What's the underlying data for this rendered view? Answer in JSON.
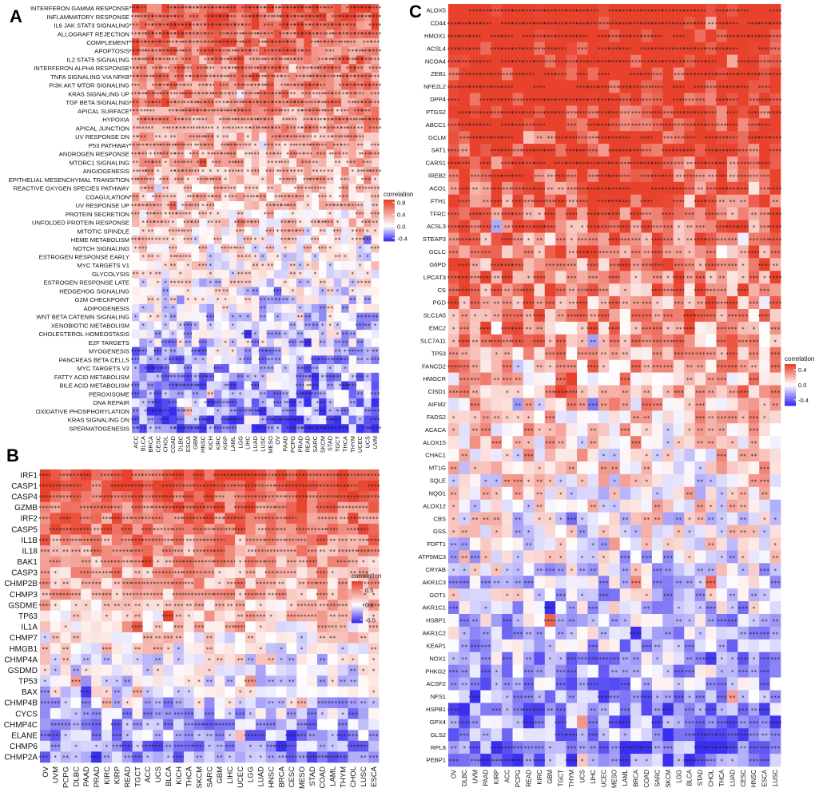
{
  "colors": {
    "low": "#3a2ef0",
    "mid": "#ffffff",
    "high": "#e8412c"
  },
  "chart_data": [
    {
      "id": "A",
      "type": "heatmap",
      "panel_label": "A",
      "legend_title": "correlation",
      "legend_ticks": [
        "0.8",
        "0.4",
        "0.0",
        "-0.4"
      ],
      "vmin": -0.5,
      "vmax": 0.9,
      "rows": [
        "INTERFERON GAMMA RESPONSE",
        "INFLAMMATORY RESPONSE",
        "IL6 JAK STAT3 SIGNALING",
        "ALLOGRAFT REJECTION",
        "COMPLEMENT",
        "APOPTOSIS",
        "IL2 STAT5 SIGNALING",
        "INTERFERON ALPHA RESPONSE",
        "TNFA SIGNALING VIA NFKB",
        "PI3K AKT MTOR SIGNALING",
        "KRAS SIGNALING UP",
        "TGF BETA SIGNALING",
        "APICAL SURFACE",
        "HYPOXIA",
        "APICAL JUNCTION",
        "UV RESPONSE DN",
        "P53 PATHWAY",
        "ANDROGEN RESPONSE",
        "MTORC1 SIGNALING",
        "ANGIOGENESIS",
        "EPITHELIAL MESENCHYMAL TRANSITION",
        "REACTIVE OXYGEN SPECIES PATHWAY",
        "COAGULATION",
        "UV RESPONSE UP",
        "PROTEIN SECRETION",
        "UNFOLDED PROTEIN RESPONSE",
        "MITOTIC SPINDLE",
        "HEME METABOLISM",
        "NOTCH SIGNALING",
        "ESTROGEN RESPONSE EARLY",
        "MYC TARGETS V1",
        "GLYCOLYSIS",
        "ESTROGEN RESPONSE LATE",
        "HEDGEHOG SIGNALING",
        "G2M CHECKPOINT",
        "ADIPOGENESIS",
        "WNT BETA CATENIN SIGNALING",
        "XENOBIOTIC METABOLISM",
        "CHOLESTEROL HOMEOSTASIS",
        "E2F TARGETS",
        "MYOGENESIS",
        "PANCREAS BETA CELLS",
        "MYC TARGETS V2",
        "FATTY ACID METABOLISM",
        "BILE ACID METABOLISM",
        "PEROXISOME",
        "DNA REPAIR",
        "OXIDATIVE PHOSPHORYLATION",
        "KRAS SIGNALING DN",
        "SPERMATOGENESIS"
      ],
      "cols": [
        "ACC",
        "BLCA",
        "BRCA",
        "CESC",
        "CHOL",
        "COAD",
        "DLBC",
        "ESCA",
        "GBM",
        "HNSC",
        "KICH",
        "KIRC",
        "KIRP",
        "LAML",
        "LGG",
        "LIHC",
        "LUAD",
        "LUSC",
        "MESO",
        "OV",
        "PAAD",
        "PCPG",
        "PRAD",
        "READ",
        "SARC",
        "SKCM",
        "STAD",
        "TGCT",
        "THCA",
        "THYM",
        "UCEC",
        "UCS",
        "UVM"
      ]
    },
    {
      "id": "B",
      "type": "heatmap",
      "panel_label": "B",
      "legend_title": "correlation",
      "legend_ticks": [
        "0.5",
        "0.0",
        "-0.5"
      ],
      "vmin": -0.6,
      "vmax": 0.8,
      "rows": [
        "IRF1",
        "CASP1",
        "CASP4",
        "GZMB",
        "IRF2",
        "CASP5",
        "IL1B",
        "IL18",
        "BAK1",
        "CASP3",
        "CHMP2B",
        "CHMP3",
        "GSDME",
        "TP63",
        "IL1A",
        "CHMP7",
        "HMGB1",
        "CHMP4A",
        "GSDMD",
        "TP53",
        "BAX",
        "CHMP4B",
        "CYCS",
        "CHMP4C",
        "ELANE",
        "CHMP6",
        "CHMP2A"
      ],
      "cols": [
        "OV",
        "UVM",
        "PCPG",
        "DLBC",
        "PAAD",
        "PRAD",
        "KIRC",
        "KIRP",
        "READ",
        "TGCT",
        "ACC",
        "UCS",
        "BLCA",
        "KICH",
        "THCA",
        "SKCM",
        "SARC",
        "GBM",
        "LIHC",
        "UCEC",
        "LGG",
        "LUAD",
        "HNSC",
        "BRCA",
        "CESC",
        "MESO",
        "STAD",
        "COAD",
        "LAML",
        "THYM",
        "CHOL",
        "LUSC",
        "ESCA"
      ]
    },
    {
      "id": "C",
      "type": "heatmap",
      "panel_label": "C",
      "legend_title": "correlation",
      "legend_ticks": [
        "0.4",
        "0.0",
        "-0.4"
      ],
      "vmin": -0.55,
      "vmax": 0.55,
      "rows": [
        "ALOX5",
        "CD44",
        "HMOX1",
        "ACSL4",
        "NCOA4",
        "ZEB1",
        "NFE2L2",
        "DPP4",
        "PTGS2",
        "ABCC1",
        "GCLM",
        "SAT1",
        "CARS1",
        "IREB2",
        "ACO1",
        "FTH1",
        "TFRC",
        "ACSL3",
        "STEAP3",
        "GCLC",
        "G6PD",
        "LPCAT3",
        "CS",
        "PGD",
        "SLC1A5",
        "EMC2",
        "SLC7A11",
        "TP53",
        "FANCD2",
        "HMGCR",
        "CISD1",
        "AIFM2",
        "FADS2",
        "ACACA",
        "ALOX15",
        "CHAC1",
        "MT1G",
        "SQLE",
        "NQO1",
        "ALOX12",
        "CBS",
        "GSS",
        "FDFT1",
        "ATP5MC3",
        "CRYAB",
        "AKR1C3",
        "GOT1",
        "AKR1C1",
        "HSBP1",
        "AKR1C2",
        "KEAP1",
        "NOX1",
        "PHKG2",
        "ACSF2",
        "NFS1",
        "HSPB1",
        "GPX4",
        "GLS2",
        "RPL8",
        "PEBP1"
      ],
      "cols": [
        "OV",
        "DLBC",
        "UVM",
        "PAAD",
        "KIRP",
        "ACC",
        "PCPG",
        "READ",
        "KIRC",
        "GBM",
        "TGCT",
        "THYM",
        "UCS",
        "LIHC",
        "UCEC",
        "MESO",
        "LAML",
        "BRCA",
        "COAD",
        "SARC",
        "SKCM",
        "LGG",
        "BLCA",
        "STAD",
        "CHOL",
        "THCA",
        "LUAD",
        "CESC",
        "HNSC",
        "ESCA",
        "LUSC"
      ]
    }
  ]
}
